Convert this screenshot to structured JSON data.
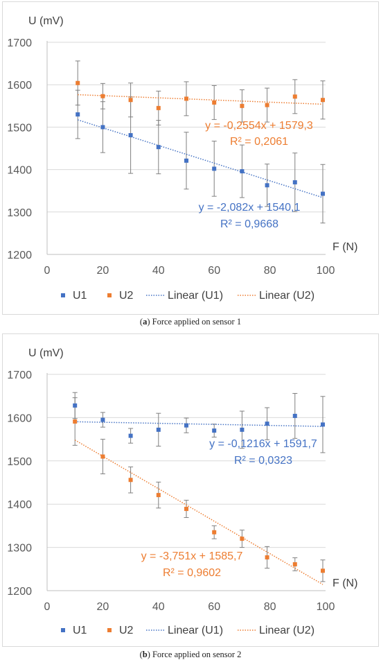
{
  "chart_data": [
    {
      "id": "a",
      "type": "scatter",
      "caption_label": "a",
      "caption_text": "Force applied on sensor 1",
      "ylabel": "U (mV)",
      "xlabel": "F (N)",
      "xlim": [
        0,
        100
      ],
      "ylim": [
        1200,
        1700
      ],
      "xticks": [
        0,
        20,
        40,
        60,
        80,
        100
      ],
      "yticks": [
        1200,
        1300,
        1400,
        1500,
        1600,
        1700
      ],
      "series": [
        {
          "name": "U1",
          "color": "#4472c4",
          "x": [
            11,
            20,
            30,
            40,
            50,
            60,
            70,
            79,
            89,
            99
          ],
          "y": [
            1530,
            1500,
            1481,
            1453,
            1421,
            1402,
            1396,
            1363,
            1370,
            1343
          ],
          "err": [
            57,
            60,
            90,
            63,
            67,
            65,
            62,
            50,
            69,
            69
          ]
        },
        {
          "name": "U2",
          "color": "#ed7d31",
          "x": [
            11,
            20,
            30,
            40,
            50,
            60,
            70,
            79,
            89,
            99
          ],
          "y": [
            1604,
            1573,
            1564,
            1545,
            1567,
            1558,
            1550,
            1552,
            1572,
            1564
          ],
          "err": [
            52,
            30,
            40,
            40,
            40,
            40,
            38,
            40,
            40,
            45
          ]
        }
      ],
      "trendlines": [
        {
          "name": "Linear (U1)",
          "color": "#4472c4",
          "slope": -2.082,
          "intercept": 1540.1,
          "equation": "y = -2,082x + 1540,1",
          "r2": "R² = 0,9668"
        },
        {
          "name": "Linear (U2)",
          "color": "#ed7d31",
          "slope": -0.2554,
          "intercept": 1579.3,
          "equation": "y = -0,2554x + 1579,3",
          "r2": "R² = 0,2061"
        }
      ]
    },
    {
      "id": "b",
      "type": "scatter",
      "caption_label": "b",
      "caption_text": "Force applied on sensor 2",
      "ylabel": "U (mV)",
      "xlabel": "F (N)",
      "xlim": [
        0,
        100
      ],
      "ylim": [
        1200,
        1700
      ],
      "xticks": [
        0,
        20,
        40,
        60,
        80,
        100
      ],
      "yticks": [
        1200,
        1300,
        1400,
        1500,
        1600,
        1700
      ],
      "series": [
        {
          "name": "U1",
          "color": "#4472c4",
          "x": [
            10,
            20,
            30,
            40,
            50,
            60,
            70,
            79,
            89,
            99
          ],
          "y": [
            1628,
            1595,
            1558,
            1572,
            1582,
            1570,
            1572,
            1586,
            1604,
            1584
          ],
          "err": [
            30,
            17,
            17,
            38,
            17,
            15,
            43,
            37,
            52,
            65
          ]
        },
        {
          "name": "U2",
          "color": "#ed7d31",
          "x": [
            10,
            20,
            30,
            40,
            50,
            60,
            70,
            79,
            89,
            99
          ],
          "y": [
            1591,
            1510,
            1456,
            1421,
            1389,
            1335,
            1320,
            1277,
            1261,
            1246
          ],
          "err": [
            55,
            40,
            30,
            30,
            20,
            15,
            20,
            25,
            15,
            25
          ]
        }
      ],
      "trendlines": [
        {
          "name": "Linear (U1)",
          "color": "#4472c4",
          "slope": -0.1216,
          "intercept": 1591.7,
          "equation": "y = -0,1216x + 1591,7",
          "r2": "R² = 0,0323"
        },
        {
          "name": "Linear (U2)",
          "color": "#ed7d31",
          "slope": -3.751,
          "intercept": 1585.7,
          "equation": "y = -3,751x + 1585,7",
          "r2": "R² = 0,9602"
        }
      ]
    }
  ]
}
